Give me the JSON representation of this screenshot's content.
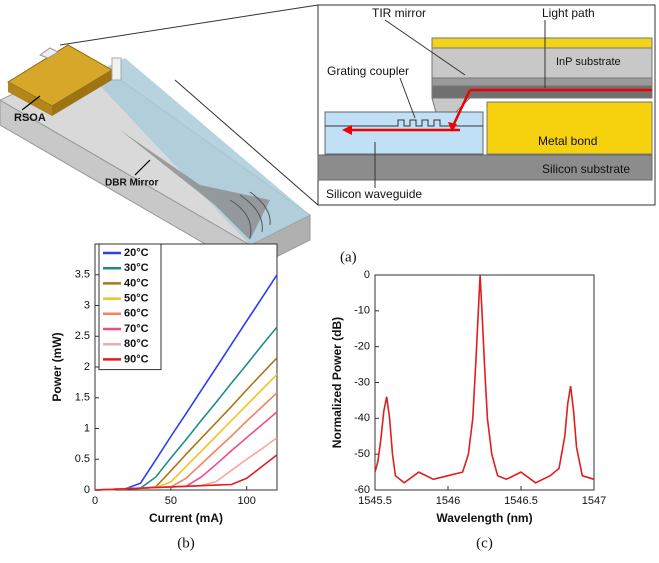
{
  "figure": {
    "panel_a": {
      "labels": {
        "rsoa": "RSOA",
        "dbr": "DBR Mirror",
        "tir": "TIR mirror",
        "light_path": "Light path",
        "inp": "InP substrate",
        "grating": "Grating coupler",
        "metal": "Metal bond",
        "si_sub": "Silicon substrate",
        "si_wg": "Silicon waveguide"
      },
      "caption": "(a)"
    }
  },
  "chart_data": [
    {
      "type": "line",
      "caption": "(b)",
      "xlabel": "Current (mA)",
      "ylabel": "Power (mW)",
      "x": [
        0,
        10,
        20,
        30,
        40,
        50,
        60,
        70,
        80,
        90,
        100,
        110,
        120
      ],
      "series": [
        {
          "name": "20°C",
          "color": "#2b3cf5",
          "values": [
            0,
            0.01,
            0.02,
            0.11,
            0.49,
            0.87,
            1.24,
            1.62,
            1.99,
            2.37,
            2.75,
            3.12,
            3.5
          ]
        },
        {
          "name": "30°C",
          "color": "#1e8c8c",
          "values": [
            0,
            0.01,
            0.02,
            0.03,
            0.21,
            0.52,
            0.82,
            1.13,
            1.43,
            1.74,
            2.04,
            2.35,
            2.65
          ]
        },
        {
          "name": "40°C",
          "color": "#a8781c",
          "values": [
            0,
            0.01,
            0.02,
            0.03,
            0.05,
            0.31,
            0.58,
            0.84,
            1.1,
            1.36,
            1.63,
            1.89,
            2.15
          ]
        },
        {
          "name": "50°C",
          "color": "#f2c21e",
          "values": [
            0,
            0.01,
            0.02,
            0.03,
            0.04,
            0.13,
            0.38,
            0.63,
            0.88,
            1.13,
            1.38,
            1.63,
            1.88
          ]
        },
        {
          "name": "60°C",
          "color": "#f08462",
          "values": [
            0,
            0.01,
            0.02,
            0.03,
            0.04,
            0.05,
            0.19,
            0.42,
            0.65,
            0.88,
            1.12,
            1.35,
            1.58
          ]
        },
        {
          "name": "70°C",
          "color": "#f04a8c",
          "values": [
            0,
            0.01,
            0.02,
            0.03,
            0.04,
            0.05,
            0.06,
            0.21,
            0.42,
            0.64,
            0.85,
            1.06,
            1.27
          ]
        },
        {
          "name": "80°C",
          "color": "#f6aaa2",
          "values": [
            0,
            0.01,
            0.02,
            0.03,
            0.04,
            0.05,
            0.06,
            0.07,
            0.14,
            0.32,
            0.5,
            0.67,
            0.85
          ]
        },
        {
          "name": "90°C",
          "color": "#e01e1e",
          "values": [
            0,
            0.01,
            0.02,
            0.03,
            0.04,
            0.05,
            0.06,
            0.07,
            0.08,
            0.09,
            0.19,
            0.38,
            0.57
          ]
        }
      ],
      "xlim": [
        0,
        120
      ],
      "xticks": [
        0,
        50,
        100
      ],
      "ylim": [
        0,
        4
      ],
      "yticks": [
        0,
        0.5,
        1,
        1.5,
        2,
        2.5,
        3,
        3.5
      ],
      "legend": "upper-left"
    },
    {
      "type": "line",
      "caption": "(c)",
      "xlabel": "Wavelength (nm)",
      "ylabel": "Normalized Power (dB)",
      "color": "#e01e1e",
      "x": [
        1545.5,
        1545.52,
        1545.54,
        1545.56,
        1545.58,
        1545.6,
        1545.62,
        1545.64,
        1545.7,
        1545.8,
        1545.9,
        1546.0,
        1546.1,
        1546.14,
        1546.17,
        1546.19,
        1546.21,
        1546.22,
        1546.23,
        1546.25,
        1546.27,
        1546.3,
        1546.34,
        1546.4,
        1546.5,
        1546.6,
        1546.7,
        1546.76,
        1546.8,
        1546.82,
        1546.84,
        1546.86,
        1546.88,
        1546.92,
        1547
      ],
      "values": [
        -55,
        -52,
        -46,
        -38,
        -34,
        -40,
        -50,
        -56,
        -58,
        -55,
        -57,
        -56,
        -55,
        -50,
        -40,
        -25,
        -8,
        0,
        -8,
        -25,
        -40,
        -50,
        -56,
        -57,
        -55,
        -58,
        -56,
        -54,
        -45,
        -36,
        -31,
        -38,
        -48,
        -56,
        -57
      ],
      "xlim": [
        1545.5,
        1547
      ],
      "xticks": [
        1545.5,
        1546,
        1546.5,
        1547
      ],
      "ylim": [
        -60,
        0
      ],
      "yticks": [
        -60,
        -50,
        -40,
        -30,
        -20,
        -10,
        0
      ]
    }
  ]
}
